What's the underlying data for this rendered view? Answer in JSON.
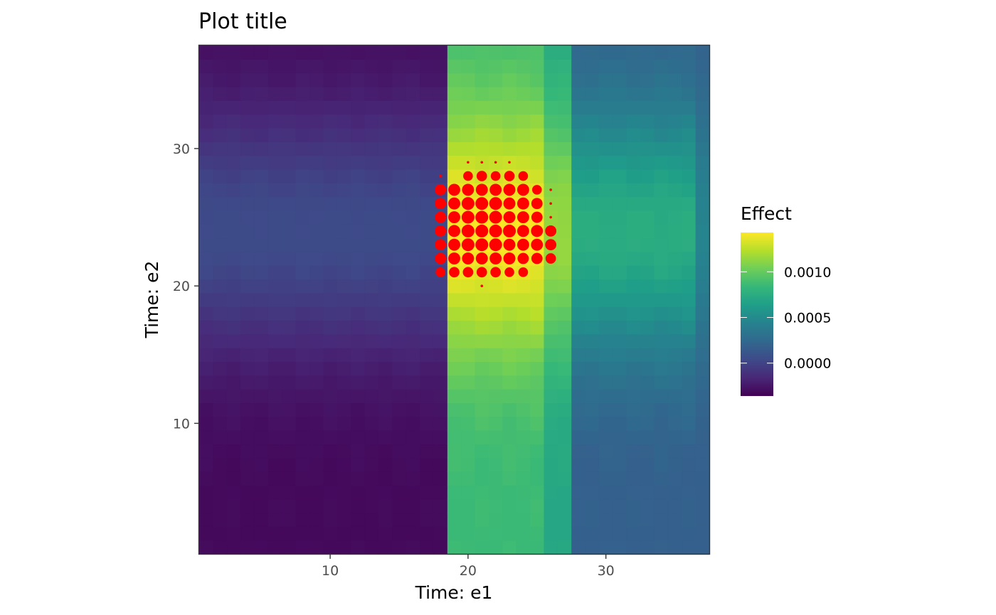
{
  "chart_data": {
    "type": "heatmap",
    "title": "Plot title",
    "xlabel": "Time: e1",
    "ylabel": "Time: e2",
    "xlim": [
      0.5,
      37.5
    ],
    "ylim": [
      0.5,
      37.5
    ],
    "x_ticks": [
      10,
      20,
      30
    ],
    "y_ticks": [
      10,
      20,
      30
    ],
    "grid": false,
    "legend": {
      "title": "Effect",
      "placement": "right",
      "ticks": [
        {
          "value": 0.001,
          "label": "0.0010"
        },
        {
          "value": 0.0005,
          "label": "0.0005"
        },
        {
          "value": 0.0,
          "label": "0.0000"
        }
      ],
      "range": [
        -0.00036,
        0.00143
      ],
      "palette": [
        "#440154",
        "#482878",
        "#3e4a89",
        "#31688e",
        "#26828e",
        "#1f9e89",
        "#35b779",
        "#6ece58",
        "#b5de2b",
        "#fde725"
      ]
    },
    "heatmap": {
      "x_bands": [
        {
          "from": 1,
          "to": 18,
          "min": -0.00032,
          "max": 5e-05
        },
        {
          "from": 19,
          "to": 25,
          "min": 0.00085,
          "max": 0.00143
        },
        {
          "from": 26,
          "to": 27,
          "min": 0.0007,
          "max": 0.00115
        },
        {
          "from": 28,
          "to": 36,
          "min": 0.00018,
          "max": 0.00075
        },
        {
          "from": 37,
          "to": 37,
          "min": 0.00018,
          "max": 0.00045
        }
      ],
      "y_peak": 24,
      "y_spread": 9
    },
    "points": {
      "color": "#ff0000",
      "size_scale": "value",
      "data": [
        {
          "x": 20,
          "y": 29,
          "s": 1
        },
        {
          "x": 21,
          "y": 29,
          "s": 1
        },
        {
          "x": 22,
          "y": 29,
          "s": 1
        },
        {
          "x": 23,
          "y": 29,
          "s": 1
        },
        {
          "x": 18,
          "y": 28,
          "s": 1
        },
        {
          "x": 20,
          "y": 28,
          "s": 6
        },
        {
          "x": 21,
          "y": 28,
          "s": 7
        },
        {
          "x": 22,
          "y": 28,
          "s": 6
        },
        {
          "x": 23,
          "y": 28,
          "s": 7
        },
        {
          "x": 24,
          "y": 28,
          "s": 6
        },
        {
          "x": 18,
          "y": 27,
          "s": 8
        },
        {
          "x": 19,
          "y": 27,
          "s": 9
        },
        {
          "x": 20,
          "y": 27,
          "s": 9
        },
        {
          "x": 21,
          "y": 27,
          "s": 9
        },
        {
          "x": 22,
          "y": 27,
          "s": 9
        },
        {
          "x": 23,
          "y": 27,
          "s": 9
        },
        {
          "x": 24,
          "y": 27,
          "s": 9
        },
        {
          "x": 25,
          "y": 27,
          "s": 6
        },
        {
          "x": 26,
          "y": 27,
          "s": 1
        },
        {
          "x": 18,
          "y": 26,
          "s": 8
        },
        {
          "x": 19,
          "y": 26,
          "s": 9
        },
        {
          "x": 20,
          "y": 26,
          "s": 10
        },
        {
          "x": 21,
          "y": 26,
          "s": 10
        },
        {
          "x": 22,
          "y": 26,
          "s": 10
        },
        {
          "x": 23,
          "y": 26,
          "s": 9
        },
        {
          "x": 24,
          "y": 26,
          "s": 9
        },
        {
          "x": 25,
          "y": 26,
          "s": 8
        },
        {
          "x": 26,
          "y": 26,
          "s": 1
        },
        {
          "x": 18,
          "y": 25,
          "s": 8
        },
        {
          "x": 19,
          "y": 25,
          "s": 9
        },
        {
          "x": 20,
          "y": 25,
          "s": 10
        },
        {
          "x": 21,
          "y": 25,
          "s": 10
        },
        {
          "x": 22,
          "y": 25,
          "s": 10
        },
        {
          "x": 23,
          "y": 25,
          "s": 9
        },
        {
          "x": 24,
          "y": 25,
          "s": 9
        },
        {
          "x": 25,
          "y": 25,
          "s": 8
        },
        {
          "x": 26,
          "y": 25,
          "s": 1
        },
        {
          "x": 18,
          "y": 24,
          "s": 8
        },
        {
          "x": 19,
          "y": 24,
          "s": 9
        },
        {
          "x": 20,
          "y": 24,
          "s": 10
        },
        {
          "x": 21,
          "y": 24,
          "s": 10
        },
        {
          "x": 22,
          "y": 24,
          "s": 10
        },
        {
          "x": 23,
          "y": 24,
          "s": 10
        },
        {
          "x": 24,
          "y": 24,
          "s": 9
        },
        {
          "x": 25,
          "y": 24,
          "s": 9
        },
        {
          "x": 26,
          "y": 24,
          "s": 8
        },
        {
          "x": 18,
          "y": 23,
          "s": 8
        },
        {
          "x": 19,
          "y": 23,
          "s": 9
        },
        {
          "x": 20,
          "y": 23,
          "s": 10
        },
        {
          "x": 21,
          "y": 23,
          "s": 10
        },
        {
          "x": 22,
          "y": 23,
          "s": 10
        },
        {
          "x": 23,
          "y": 23,
          "s": 9
        },
        {
          "x": 24,
          "y": 23,
          "s": 9
        },
        {
          "x": 25,
          "y": 23,
          "s": 9
        },
        {
          "x": 26,
          "y": 23,
          "s": 8
        },
        {
          "x": 18,
          "y": 22,
          "s": 8
        },
        {
          "x": 19,
          "y": 22,
          "s": 9
        },
        {
          "x": 20,
          "y": 22,
          "s": 9
        },
        {
          "x": 21,
          "y": 22,
          "s": 9
        },
        {
          "x": 22,
          "y": 22,
          "s": 9
        },
        {
          "x": 23,
          "y": 22,
          "s": 9
        },
        {
          "x": 24,
          "y": 22,
          "s": 8
        },
        {
          "x": 25,
          "y": 22,
          "s": 8
        },
        {
          "x": 26,
          "y": 22,
          "s": 7
        },
        {
          "x": 18,
          "y": 21,
          "s": 6
        },
        {
          "x": 19,
          "y": 21,
          "s": 7
        },
        {
          "x": 20,
          "y": 21,
          "s": 7
        },
        {
          "x": 21,
          "y": 21,
          "s": 7
        },
        {
          "x": 22,
          "y": 21,
          "s": 7
        },
        {
          "x": 23,
          "y": 21,
          "s": 6
        },
        {
          "x": 24,
          "y": 21,
          "s": 6
        },
        {
          "x": 21,
          "y": 20,
          "s": 1
        }
      ]
    }
  }
}
